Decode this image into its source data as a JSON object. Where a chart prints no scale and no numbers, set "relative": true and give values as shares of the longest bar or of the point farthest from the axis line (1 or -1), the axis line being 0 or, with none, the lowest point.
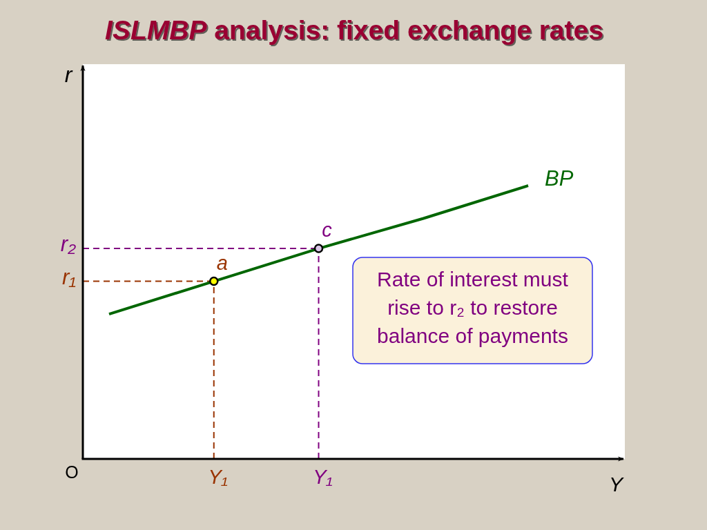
{
  "chart_data": {
    "type": "line",
    "title": "ISLMBP analysis: fixed exchange rates",
    "xlabel": "Y",
    "ylabel": "r",
    "categories": [
      null,
      "Y₁",
      "Y₁",
      null,
      null
    ],
    "relative": true,
    "series": [
      {
        "name": "BP",
        "color": "#006600",
        "values": [
          0.53,
          0.65,
          0.77,
          0.88,
          1
        ]
      },
      {
        "type": "lollipop",
        "marker": "circle",
        "line_style": "dashed",
        "colors": [
          null,
          "#ffff00",
          "#d9c6e6",
          null,
          null
        ],
        "values": [
          null,
          0.65,
          0.77,
          null,
          null
        ]
      }
    ],
    "ref_lines": [
      {
        "axis": "y",
        "value": 0.65,
        "label": "r₁",
        "color": "#993300",
        "line_style": "dashed"
      },
      {
        "axis": "y",
        "value": 0.77,
        "label": "r₂",
        "color": "#800080",
        "line_style": "dashed"
      }
    ],
    "annotations": [
      "O",
      "Rate of interest must rise to r₂ to restore balance of payments",
      {
        "text": "a",
        "y": 0.65
      },
      {
        "text": "c",
        "y": 0.77
      }
    ]
  }
}
